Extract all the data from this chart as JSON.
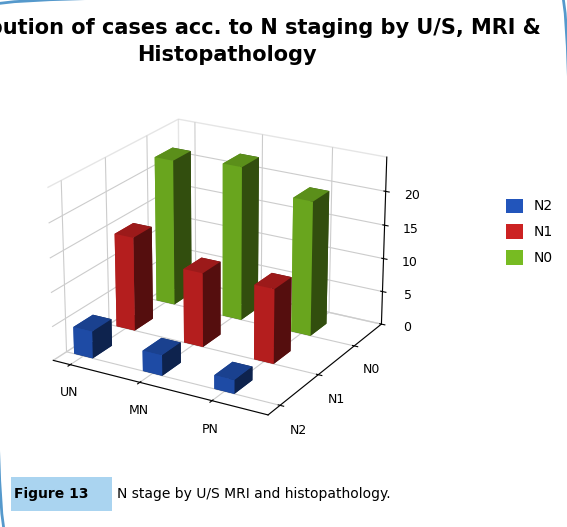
{
  "title_line1": "Disrtribution of cases acc. to N staging by U/S, MRI &",
  "title_line2": "Histopathology",
  "title_fontsize": 15,
  "groups": [
    "UN",
    "MN",
    "PN"
  ],
  "series": [
    "N2",
    "N1",
    "N0"
  ],
  "colors": [
    "#2255bb",
    "#cc2222",
    "#77bb22"
  ],
  "values": {
    "N2": [
      4,
      3,
      2
    ],
    "N1": [
      14,
      11,
      11
    ],
    "N0": [
      22,
      23,
      20
    ]
  },
  "zlim": [
    0,
    25
  ],
  "zticks": [
    0,
    5,
    10,
    15,
    20
  ],
  "depth_labels": [
    "N0",
    "N1",
    "N2"
  ],
  "caption_bold": "Figure 13",
  "caption_text": "N stage by U/S MRI and histopathology.",
  "background_color": "#ffffff",
  "border_color": "#5599cc",
  "caption_bg": "#aad4f0"
}
